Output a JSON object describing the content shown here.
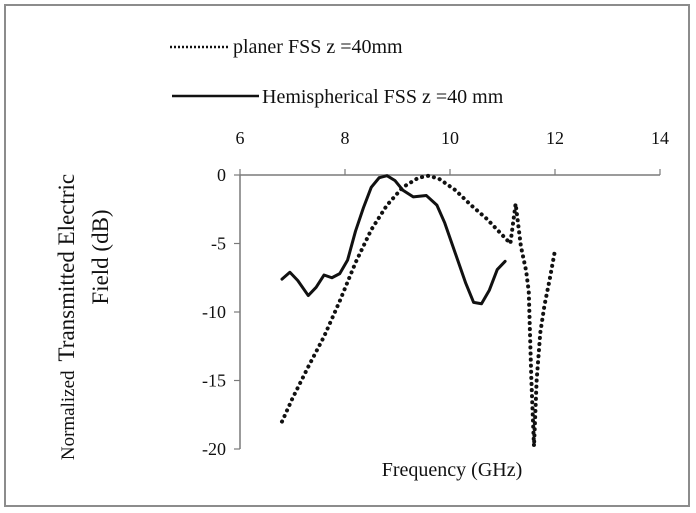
{
  "chart_data": {
    "type": "line",
    "title": "",
    "xlabel": "Frequency (GHz)",
    "ylabel": {
      "line1_prefix": "Normalized",
      "line1_main": "Transmitted Electric",
      "line2": "Field (dB)"
    },
    "xlim": [
      6,
      14
    ],
    "ylim": [
      -20,
      0
    ],
    "xticks": [
      6,
      8,
      10,
      12,
      14
    ],
    "yticks": [
      0,
      -5,
      -10,
      -15,
      -20
    ],
    "grid": false,
    "legend_position": "top-left",
    "series": [
      {
        "name": "planer FSS z =40mm",
        "style": "dotted",
        "color": "#111111",
        "points": [
          [
            6.8,
            -18.0
          ],
          [
            7.0,
            -16.3
          ],
          [
            7.3,
            -14.0
          ],
          [
            7.6,
            -11.8
          ],
          [
            7.9,
            -9.2
          ],
          [
            8.2,
            -6.4
          ],
          [
            8.5,
            -4.0
          ],
          [
            8.8,
            -2.2
          ],
          [
            9.1,
            -0.9
          ],
          [
            9.4,
            -0.2
          ],
          [
            9.6,
            -0.05
          ],
          [
            9.8,
            -0.3
          ],
          [
            10.1,
            -1.1
          ],
          [
            10.4,
            -2.2
          ],
          [
            10.7,
            -3.2
          ],
          [
            11.0,
            -4.4
          ],
          [
            11.15,
            -5.0
          ],
          [
            11.25,
            -2.1
          ],
          [
            11.35,
            -5.2
          ],
          [
            11.45,
            -7.0
          ],
          [
            11.5,
            -8.5
          ],
          [
            11.55,
            -15.0
          ],
          [
            11.6,
            -19.8
          ],
          [
            11.65,
            -15.0
          ],
          [
            11.72,
            -11.5
          ],
          [
            11.8,
            -9.5
          ],
          [
            11.9,
            -7.6
          ],
          [
            12.0,
            -5.5
          ]
        ]
      },
      {
        "name": "Hemispherical FSS z =40 mm",
        "style": "solid",
        "color": "#111111",
        "points": [
          [
            6.8,
            -7.6
          ],
          [
            6.95,
            -7.1
          ],
          [
            7.1,
            -7.7
          ],
          [
            7.3,
            -8.8
          ],
          [
            7.45,
            -8.2
          ],
          [
            7.6,
            -7.3
          ],
          [
            7.75,
            -7.5
          ],
          [
            7.9,
            -7.2
          ],
          [
            8.05,
            -6.2
          ],
          [
            8.2,
            -4.1
          ],
          [
            8.35,
            -2.4
          ],
          [
            8.5,
            -0.9
          ],
          [
            8.65,
            -0.2
          ],
          [
            8.8,
            -0.05
          ],
          [
            8.95,
            -0.4
          ],
          [
            9.1,
            -1.1
          ],
          [
            9.3,
            -1.6
          ],
          [
            9.55,
            -1.5
          ],
          [
            9.75,
            -2.2
          ],
          [
            9.9,
            -3.5
          ],
          [
            10.1,
            -5.7
          ],
          [
            10.3,
            -7.9
          ],
          [
            10.45,
            -9.3
          ],
          [
            10.6,
            -9.4
          ],
          [
            10.75,
            -8.4
          ],
          [
            10.9,
            -6.9
          ],
          [
            11.05,
            -6.3
          ]
        ]
      }
    ]
  }
}
